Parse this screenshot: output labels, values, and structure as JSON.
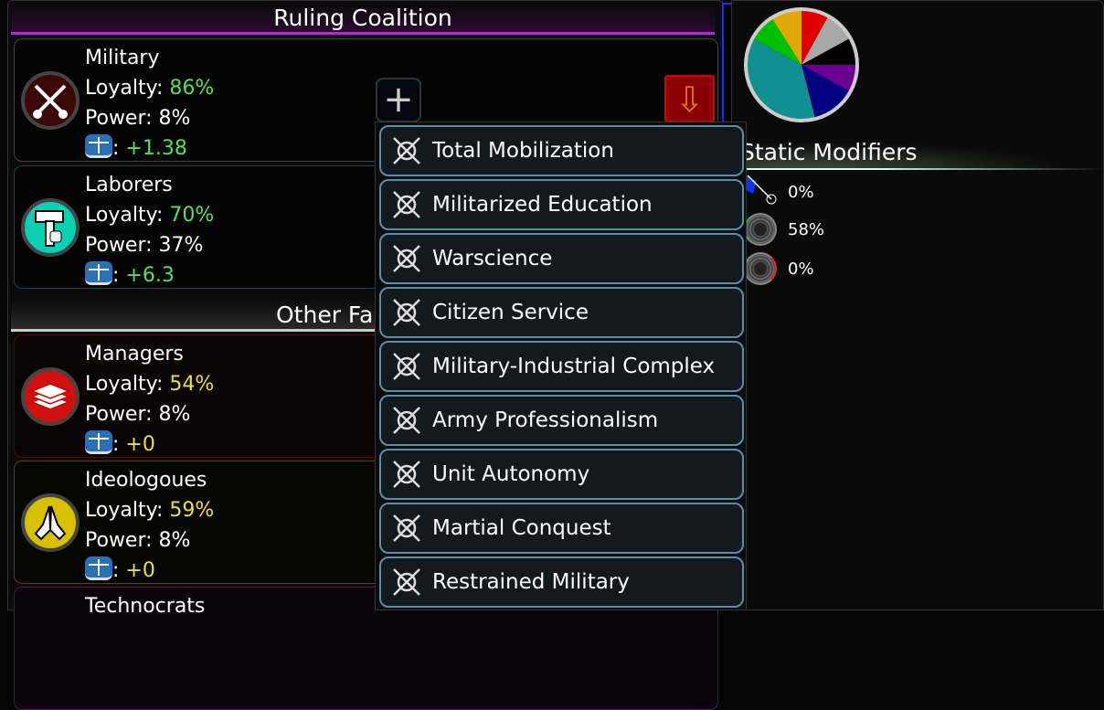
{
  "coalition": {
    "title": "Ruling Coalition"
  },
  "other": {
    "title": "Other Fa"
  },
  "labels": {
    "loyalty": "Loyalty: ",
    "power": "Power: ",
    "colon": ": "
  },
  "factions": [
    {
      "name": "Military",
      "loyalty": "86%",
      "power": "8%",
      "delta": "+1.38",
      "color": "#3a0808",
      "icon": "crossed-swords-icon",
      "accent": "#55e055"
    },
    {
      "name": "Laborers",
      "loyalty": "70%",
      "power": "37%",
      "delta": "+6.3",
      "color": "#08d0b0",
      "icon": "hammer-fist-icon",
      "accent": "#55e055"
    },
    {
      "name": "Managers",
      "loyalty": "54%",
      "power": "8%",
      "delta": "+0",
      "color": "#d01010",
      "icon": "paper-stack-icon",
      "accent": "#e8e040"
    },
    {
      "name": "Ideologoues",
      "loyalty": "59%",
      "power": "8%",
      "delta": "+0",
      "color": "#d8c000",
      "icon": "praying-hands-icon",
      "accent": "#e8e040"
    },
    {
      "name": "Technocrats"
    }
  ],
  "buttons": {
    "add": "+",
    "demote": "⇩"
  },
  "dropdown": {
    "items": [
      {
        "label": "Total Mobilization",
        "icon": "jet-tank-icon"
      },
      {
        "label": "Militarized Education",
        "icon": "grad-cap-swords-icon"
      },
      {
        "label": "Warscience",
        "icon": "gear-flask-icon"
      },
      {
        "label": "Citizen Service",
        "icon": "people-icon"
      },
      {
        "label": "Military-Industrial Complex",
        "icon": "gear-swords-icon"
      },
      {
        "label": "Army Professionalism",
        "icon": "heart-swords-icon"
      },
      {
        "label": "Unit Autonomy",
        "icon": "shield-sword-icon"
      },
      {
        "label": "Martial Conquest",
        "icon": "star-burst-icon"
      },
      {
        "label": "Restrained Military",
        "icon": "locked-swords-icon"
      }
    ]
  },
  "static_modifiers": {
    "title": "Static Modifiers",
    "rows": [
      {
        "icon": "flag-fist-icon",
        "value": "0%"
      },
      {
        "icon": "green-dial-icon",
        "value": "58%"
      },
      {
        "icon": "red-dial-icon",
        "value": "0%"
      }
    ]
  },
  "chart_data": {
    "type": "pie",
    "slices": [
      {
        "color": "#e00000",
        "value": 8
      },
      {
        "color": "#a8a8a8",
        "value": 9
      },
      {
        "color": "#000000",
        "value": 8
      },
      {
        "color": "#6a0090",
        "value": 8
      },
      {
        "color": "#000080",
        "value": 13
      },
      {
        "color": "#109090",
        "value": 37
      },
      {
        "color": "#00c000",
        "value": 8
      },
      {
        "color": "#e0a800",
        "value": 9
      }
    ]
  }
}
